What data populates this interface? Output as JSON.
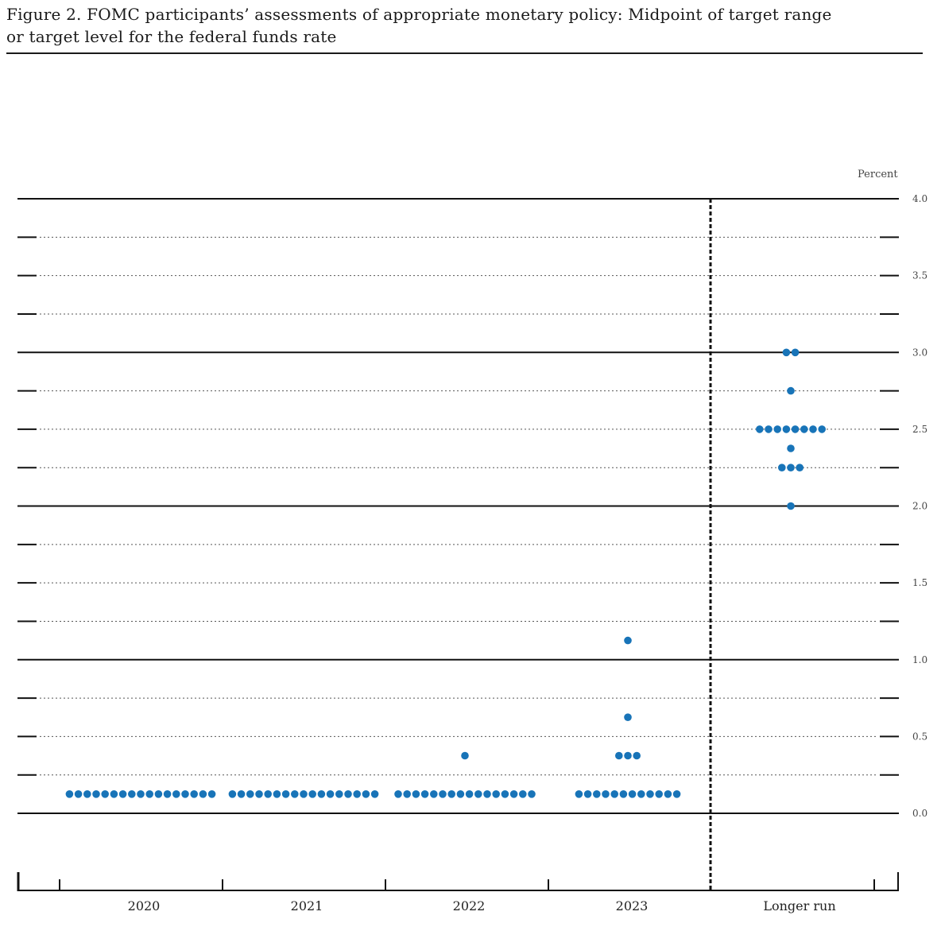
{
  "title_line1": "Figure 2.  FOMC participants’ assessments of appropriate monetary policy: Midpoint of target range",
  "title_line2": "or target level for the federal funds rate",
  "chart_data": {
    "type": "scatter",
    "subtype": "dot-plot",
    "unit_label": "Percent",
    "categories": [
      "2020",
      "2021",
      "2022",
      "2023",
      "Longer run"
    ],
    "ylim": [
      0.0,
      4.0
    ],
    "yticks": [
      0.0,
      0.5,
      1.0,
      1.5,
      2.0,
      2.5,
      3.0,
      3.5,
      4.0
    ],
    "ytick_labels": [
      "0.0",
      "0.5",
      "1.0",
      "1.5",
      "2.0",
      "2.5",
      "3.0",
      "3.5",
      "4.0"
    ],
    "grid": true,
    "dot_color": "#1874b8",
    "points": [
      {
        "category": "2020",
        "rows": [
          {
            "y": 0.125,
            "count": 17
          }
        ]
      },
      {
        "category": "2021",
        "rows": [
          {
            "y": 0.125,
            "count": 17
          }
        ]
      },
      {
        "category": "2022",
        "rows": [
          {
            "y": 0.125,
            "count": 16
          },
          {
            "y": 0.375,
            "count": 1
          }
        ]
      },
      {
        "category": "2023",
        "rows": [
          {
            "y": 0.125,
            "count": 12
          },
          {
            "y": 0.375,
            "count": 3
          },
          {
            "y": 0.625,
            "count": 1
          },
          {
            "y": 1.125,
            "count": 1
          }
        ]
      },
      {
        "category": "Longer run",
        "rows": [
          {
            "y": 2.0,
            "count": 1
          },
          {
            "y": 2.25,
            "count": 3
          },
          {
            "y": 2.375,
            "count": 1
          },
          {
            "y": 2.5,
            "count": 8
          },
          {
            "y": 2.75,
            "count": 1
          },
          {
            "y": 3.0,
            "count": 2
          }
        ]
      }
    ]
  }
}
